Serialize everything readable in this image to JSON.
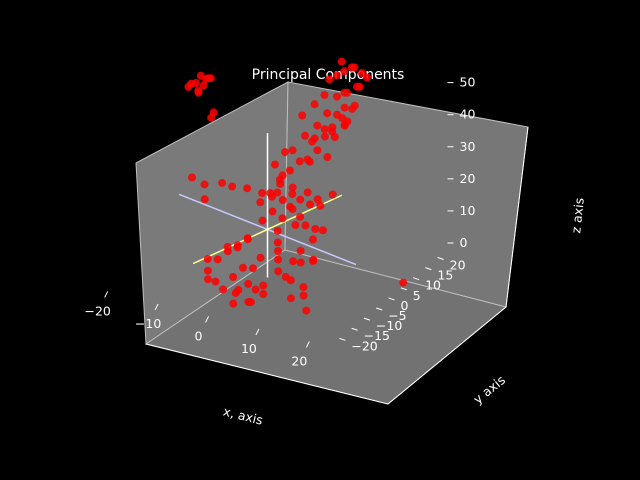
{
  "chart_data": {
    "type": "scatter",
    "projection": "3d",
    "title": "Principal Components",
    "xlabel": "x, axis",
    "ylabel": "y axis",
    "zlabel": "z axis",
    "xlim": [
      -24,
      24
    ],
    "ylim": [
      -24,
      24
    ],
    "zlim": [
      -2,
      52
    ],
    "x_ticks": [
      "−20",
      "−10",
      "0",
      "10",
      "20"
    ],
    "y_ticks": [
      "−20",
      "−15",
      "−10",
      "−5",
      "0",
      "5",
      "10",
      "15",
      "20"
    ],
    "z_ticks": [
      "0",
      "10",
      "20",
      "30",
      "40",
      "50"
    ],
    "background_color": "#000000",
    "pane_color": "#7a7a7a",
    "marker_color": "#ff0000",
    "component_line_colors": [
      "#c8c8ff",
      "#ffff88",
      "#ffffff"
    ],
    "grid": false,
    "series": [
      {
        "points": [
          [
            -22,
            18,
            38
          ],
          [
            -21,
            17,
            36
          ],
          [
            -22,
            16,
            37
          ],
          [
            -20,
            18,
            38
          ],
          [
            -21,
            15,
            35
          ],
          [
            -22,
            17,
            34
          ],
          [
            -20,
            16,
            39
          ],
          [
            -21,
            19,
            37
          ],
          [
            -23,
            15,
            36
          ],
          [
            -22,
            14,
            38
          ],
          [
            -18,
            15,
            30
          ],
          [
            -18,
            14,
            29
          ],
          [
            -12,
            -1,
            20
          ],
          [
            -14,
            -2,
            22
          ],
          [
            -9,
            0,
            21
          ],
          [
            -8,
            2,
            19
          ],
          [
            -11,
            -3,
            17
          ],
          [
            -6,
            4,
            18
          ],
          [
            -4,
            6,
            16
          ],
          [
            -3,
            8,
            14
          ],
          [
            -6,
            -12,
            6
          ],
          [
            -5,
            -10,
            5
          ],
          [
            -4,
            -8,
            8
          ],
          [
            -3,
            -6,
            7
          ],
          [
            -2,
            -4,
            9
          ],
          [
            -5,
            -14,
            4
          ],
          [
            -4,
            -16,
            3
          ],
          [
            -2,
            -12,
            10
          ],
          [
            -1,
            -10,
            11
          ],
          [
            0,
            -8,
            12
          ],
          [
            -3,
            -15,
            2
          ],
          [
            0,
            -14,
            4
          ],
          [
            1,
            -12,
            6
          ],
          [
            2,
            -10,
            5
          ],
          [
            3,
            -9,
            8
          ],
          [
            -1,
            -16,
            1
          ],
          [
            1,
            -15,
            0
          ],
          [
            2,
            -16,
            2
          ],
          [
            3,
            -14,
            3
          ],
          [
            4,
            -13,
            1
          ],
          [
            5,
            -12,
            2
          ],
          [
            6,
            -14,
            1
          ],
          [
            2,
            -18,
            -1
          ],
          [
            4,
            -16,
            -1
          ],
          [
            5,
            -17,
            0
          ],
          [
            0,
            -2,
            14
          ],
          [
            1,
            0,
            16
          ],
          [
            2,
            2,
            13
          ],
          [
            3,
            4,
            15
          ],
          [
            4,
            1,
            18
          ],
          [
            5,
            3,
            14
          ],
          [
            6,
            5,
            17
          ],
          [
            0,
            4,
            19
          ],
          [
            2,
            6,
            18
          ],
          [
            3,
            -2,
            12
          ],
          [
            4,
            -4,
            10
          ],
          [
            5,
            -6,
            9
          ],
          [
            6,
            -8,
            8
          ],
          [
            7,
            -10,
            6
          ],
          [
            8,
            -6,
            7
          ],
          [
            1,
            3,
            24
          ],
          [
            2,
            5,
            26
          ],
          [
            3,
            7,
            28
          ],
          [
            4,
            9,
            27
          ],
          [
            5,
            6,
            30
          ],
          [
            6,
            8,
            32
          ],
          [
            7,
            10,
            29
          ],
          [
            3,
            12,
            31
          ],
          [
            4,
            11,
            33
          ],
          [
            5,
            13,
            35
          ],
          [
            6,
            14,
            34
          ],
          [
            7,
            12,
            37
          ],
          [
            8,
            15,
            36
          ],
          [
            6,
            16,
            38
          ],
          [
            7,
            17,
            40
          ],
          [
            8,
            14,
            39
          ],
          [
            9,
            16,
            41
          ],
          [
            5,
            18,
            42
          ],
          [
            6,
            19,
            43
          ],
          [
            7,
            18,
            44
          ],
          [
            8,
            20,
            45
          ],
          [
            9,
            19,
            46
          ],
          [
            4,
            20,
            47
          ],
          [
            5,
            21,
            48
          ],
          [
            6,
            22,
            49
          ],
          [
            7,
            21,
            50
          ],
          [
            8,
            22,
            48
          ],
          [
            9,
            22,
            47
          ],
          [
            3,
            19,
            46
          ],
          [
            4,
            22,
            50
          ],
          [
            2,
            10,
            40
          ],
          [
            3,
            13,
            42
          ],
          [
            4,
            15,
            44
          ],
          [
            5,
            10,
            38
          ],
          [
            6,
            12,
            41
          ],
          [
            7,
            9,
            36
          ],
          [
            8,
            11,
            35
          ],
          [
            9,
            13,
            38
          ],
          [
            10,
            12,
            40
          ],
          [
            10,
            15,
            43
          ],
          [
            1,
            -5,
            22
          ],
          [
            2,
            -3,
            24
          ],
          [
            3,
            -1,
            26
          ],
          [
            4,
            -2,
            22
          ],
          [
            5,
            0,
            25
          ],
          [
            6,
            1,
            21
          ],
          [
            7,
            2,
            23
          ],
          [
            8,
            4,
            20
          ],
          [
            9,
            3,
            19
          ],
          [
            10,
            6,
            21
          ],
          [
            7,
            -3,
            16
          ],
          [
            8,
            -1,
            15
          ],
          [
            9,
            1,
            13
          ],
          [
            10,
            -2,
            12
          ],
          [
            11,
            0,
            14
          ],
          [
            9,
            -5,
            10
          ],
          [
            10,
            -7,
            8
          ],
          [
            11,
            -4,
            7
          ],
          [
            12,
            -6,
            9
          ],
          [
            8,
            -9,
            4
          ],
          [
            12,
            -10,
            3
          ],
          [
            13,
            -12,
            2
          ],
          [
            15,
            -15,
            0
          ],
          [
            11,
            -13,
            1
          ],
          [
            10,
            -11,
            5
          ],
          [
            1,
            1,
            30
          ],
          [
            2,
            3,
            33
          ],
          [
            3,
            0,
            28
          ],
          [
            4,
            2,
            35
          ],
          [
            5,
            5,
            38
          ],
          [
            24,
            6,
            -1
          ]
        ]
      }
    ],
    "principal_component_lines": [
      {
        "from": [
          -20,
          5,
          10
        ],
        "to": [
          20,
          -5,
          10
        ]
      },
      {
        "from": [
          -5,
          -20,
          10
        ],
        "to": [
          5,
          20,
          10
        ]
      },
      {
        "from": [
          0,
          0,
          -5
        ],
        "to": [
          0,
          0,
          40
        ]
      }
    ]
  }
}
